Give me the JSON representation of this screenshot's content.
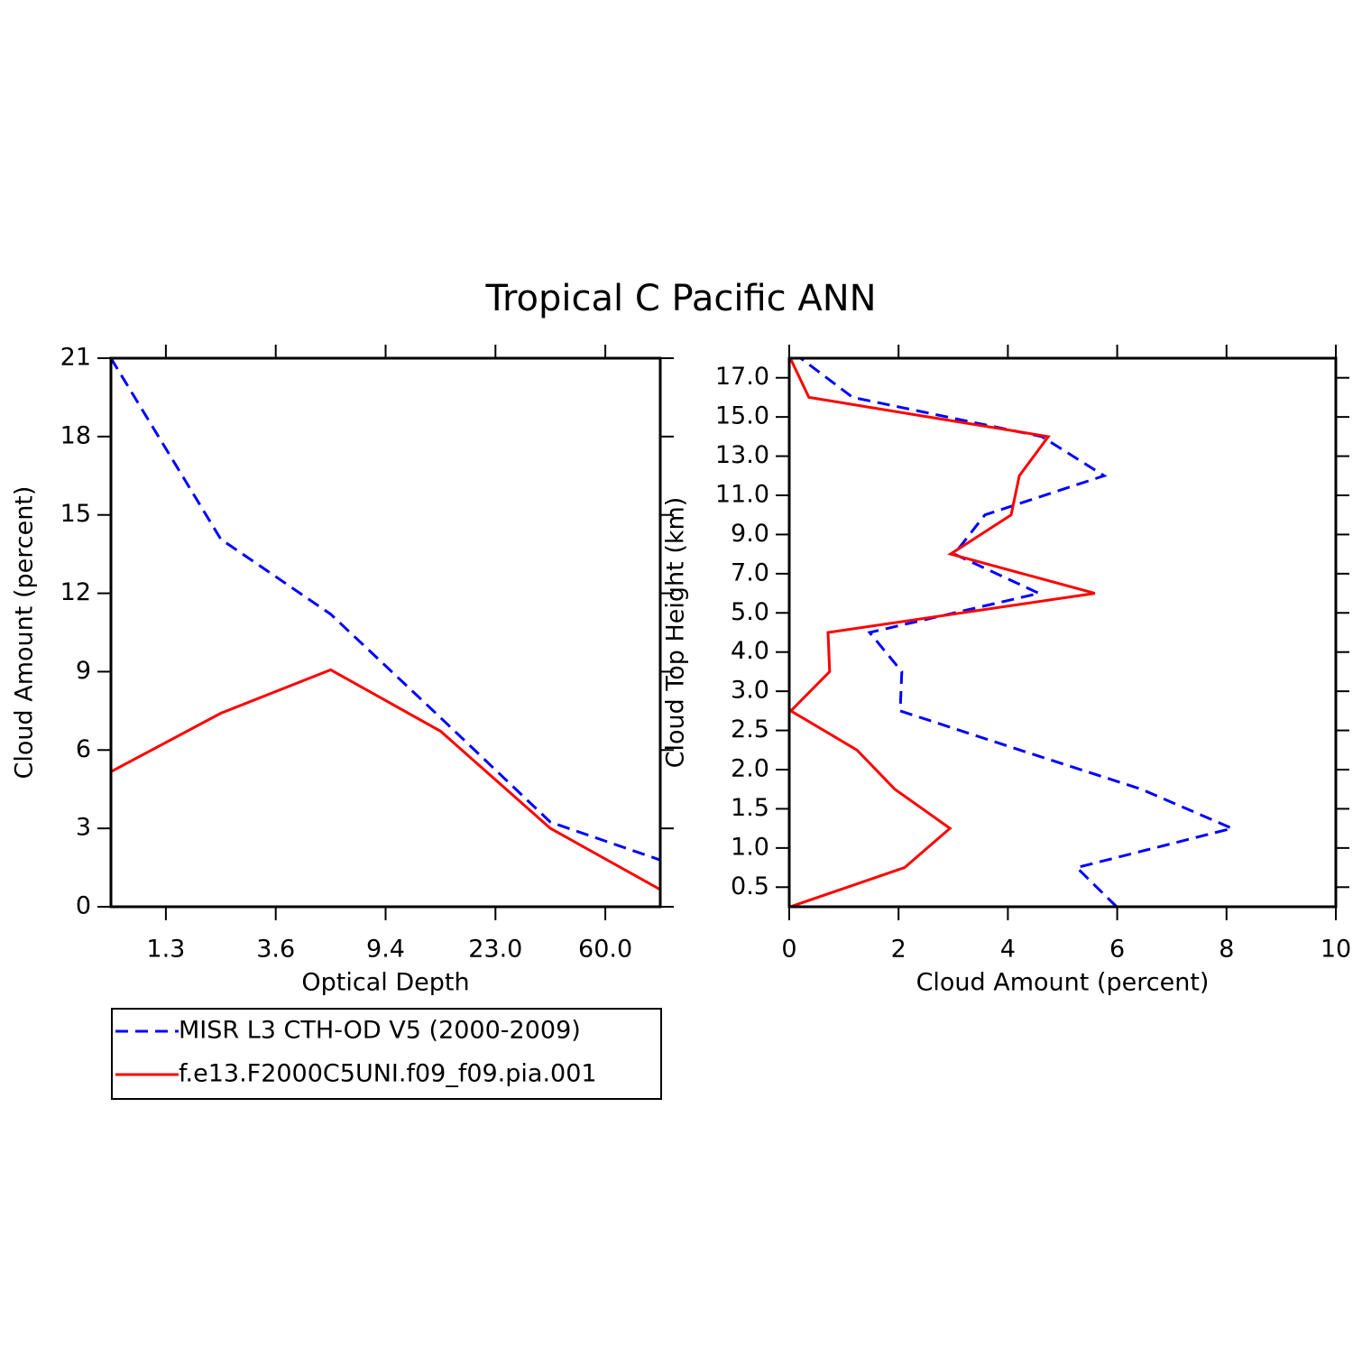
{
  "title": "Tropical C Pacific ANN",
  "chart_data": [
    {
      "type": "line",
      "orientation": "vertical",
      "xlabel": "Optical Depth",
      "ylabel": "Cloud Amount (percent)",
      "x": [
        0,
        1,
        2,
        3,
        4,
        5
      ],
      "xlim": [
        0,
        5
      ],
      "xticks": [
        {
          "value": 0.5,
          "label": "1.3"
        },
        {
          "value": 1.5,
          "label": "3.6"
        },
        {
          "value": 2.5,
          "label": "9.4"
        },
        {
          "value": 3.5,
          "label": "23.0"
        },
        {
          "value": 4.5,
          "label": "60.0"
        }
      ],
      "ylim": [
        0,
        21
      ],
      "yticks": [
        0,
        3,
        6,
        9,
        12,
        15,
        18,
        21
      ],
      "legend": "bottom",
      "series": [
        {
          "name": "MISR L3 CTH-OD V5 (2000-2009)",
          "color": "#0000ff",
          "dashed": true,
          "values": [
            21,
            14.07,
            11.2,
            7.24,
            3.24,
            1.79
          ]
        },
        {
          "name": "f.e13.F2000C5UNI.f09_f09.pia.001",
          "color": "#ff0000",
          "dashed": false,
          "values": [
            5.17,
            7.41,
            9.07,
            6.72,
            3.0,
            0.66
          ]
        }
      ]
    },
    {
      "type": "line",
      "orientation": "horizontal",
      "xlabel": "Cloud Amount (percent)",
      "ylabel": "Cloud Top Height (km)",
      "y": [
        0,
        1,
        2,
        3,
        4,
        5,
        6,
        7,
        8,
        9,
        10,
        11,
        12,
        13,
        14
      ],
      "ylim": [
        0,
        14
      ],
      "yticks": [
        {
          "value": 0.5,
          "label": "0.5"
        },
        {
          "value": 1.5,
          "label": "1.0"
        },
        {
          "value": 2.5,
          "label": "1.5"
        },
        {
          "value": 3.5,
          "label": "2.0"
        },
        {
          "value": 4.5,
          "label": "2.5"
        },
        {
          "value": 5.5,
          "label": "3.0"
        },
        {
          "value": 6.5,
          "label": "4.0"
        },
        {
          "value": 7.5,
          "label": "5.0"
        },
        {
          "value": 8.5,
          "label": "7.0"
        },
        {
          "value": 9.5,
          "label": "9.0"
        },
        {
          "value": 10.5,
          "label": "11.0"
        },
        {
          "value": 11.5,
          "label": "13.0"
        },
        {
          "value": 12.5,
          "label": "15.0"
        },
        {
          "value": 13.5,
          "label": "17.0"
        }
      ],
      "xlim": [
        0,
        10
      ],
      "xticks": [
        0,
        2,
        4,
        6,
        8,
        10
      ],
      "series": [
        {
          "color": "#0000ff",
          "dashed": true,
          "values": [
            5.99,
            5.26,
            8.1,
            6.44,
            4.22,
            2.03,
            2.06,
            1.47,
            4.57,
            3.02,
            3.58,
            5.76,
            4.62,
            1.16,
            0.21
          ]
        },
        {
          "color": "#ff0000",
          "dashed": false,
          "values": [
            0.02,
            2.11,
            2.94,
            1.93,
            1.24,
            0.03,
            0.74,
            0.71,
            5.59,
            2.95,
            4.06,
            4.21,
            4.74,
            0.36,
            0.02
          ]
        }
      ]
    }
  ]
}
